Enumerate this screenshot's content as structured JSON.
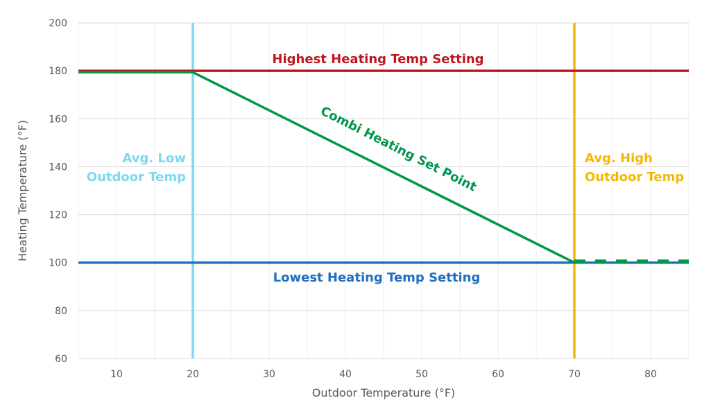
{
  "chart_data": {
    "type": "line",
    "title": "",
    "xlabel": "Outdoor Temperature (°F)",
    "ylabel": "Heating Temperature (°F)",
    "xlim": [
      5,
      85
    ],
    "ylim": [
      60,
      200
    ],
    "xticks": [
      10,
      20,
      30,
      40,
      50,
      60,
      70,
      80
    ],
    "yticks": [
      60,
      80,
      100,
      120,
      140,
      160,
      180,
      200
    ],
    "grid": true,
    "series": [
      {
        "name": "Highest Heating Temp Setting",
        "color": "#c0161d",
        "style": "solid",
        "x": [
          5,
          85
        ],
        "y": [
          180,
          180
        ]
      },
      {
        "name": "Lowest Heating Temp Setting",
        "color": "#1f6fbf",
        "style": "solid",
        "x": [
          5,
          85
        ],
        "y": [
          100,
          100
        ]
      },
      {
        "name": "Combi Heating Set Point",
        "color": "#00964b",
        "style": "solid",
        "x": [
          5,
          20,
          70
        ],
        "y": [
          180,
          180,
          100
        ]
      },
      {
        "name": "",
        "color": "#00964b",
        "style": "dashed",
        "x": [
          70,
          85
        ],
        "y": [
          100,
          100
        ]
      }
    ],
    "vlines": [
      {
        "x": 20,
        "color": "#7dd8f0",
        "label": [
          "Avg. Low",
          "Outdoor Temp"
        ]
      },
      {
        "x": 70,
        "color": "#f5b800",
        "label": [
          "Avg. High",
          "Outdoor Temp"
        ]
      }
    ],
    "annotations": {
      "highest": "Highest Heating Temp Setting",
      "lowest": "Lowest Heating Temp Setting",
      "setpoint": "Combi Heating Set Point"
    }
  }
}
